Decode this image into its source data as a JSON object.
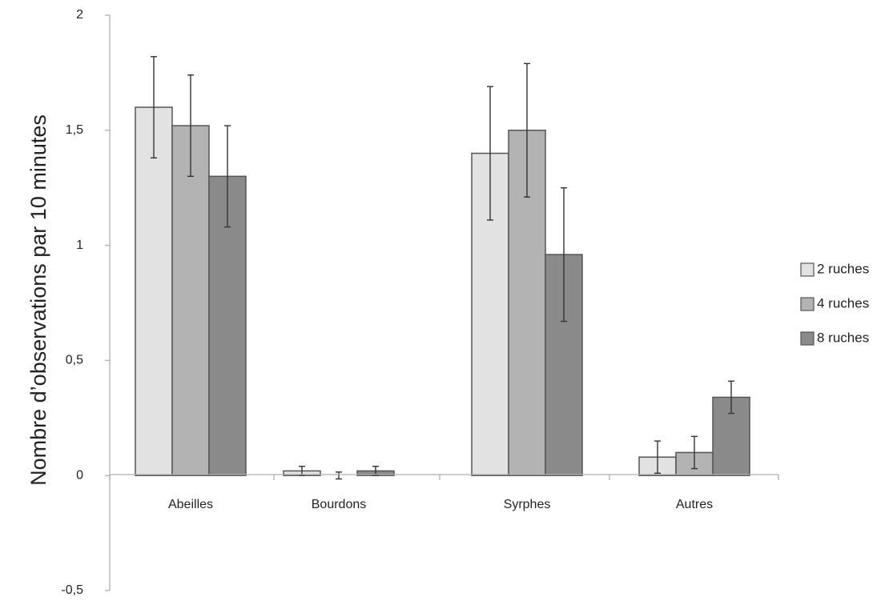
{
  "chart_data": {
    "type": "bar",
    "title": "",
    "xlabel": "",
    "ylabel": "Nombre d’observations par 10 minutes",
    "categories": [
      "Abeilles",
      "Bourdons",
      "Syrphes",
      "Autres"
    ],
    "ylim": [
      -0.5,
      2
    ],
    "yticks": [
      -0.5,
      0,
      0.5,
      1,
      1.5,
      2
    ],
    "ytick_labels": [
      "-0,5",
      "0",
      "0,5",
      "1",
      "1,5",
      "2"
    ],
    "grid": false,
    "legend_position": "right",
    "series": [
      {
        "name": "2 ruches",
        "color": "#e2e2e2",
        "values": [
          1.6,
          0.02,
          1.4,
          0.08
        ],
        "errors": [
          0.22,
          0.02,
          0.29,
          0.07
        ]
      },
      {
        "name": "4 ruches",
        "color": "#b3b3b3",
        "values": [
          1.52,
          0.0,
          1.5,
          0.1
        ],
        "errors": [
          0.22,
          0.015,
          0.29,
          0.07
        ]
      },
      {
        "name": "8 ruches",
        "color": "#8a8a8a",
        "values": [
          1.3,
          0.02,
          0.96,
          0.34
        ],
        "errors": [
          0.22,
          0.02,
          0.29,
          0.07
        ]
      }
    ]
  }
}
